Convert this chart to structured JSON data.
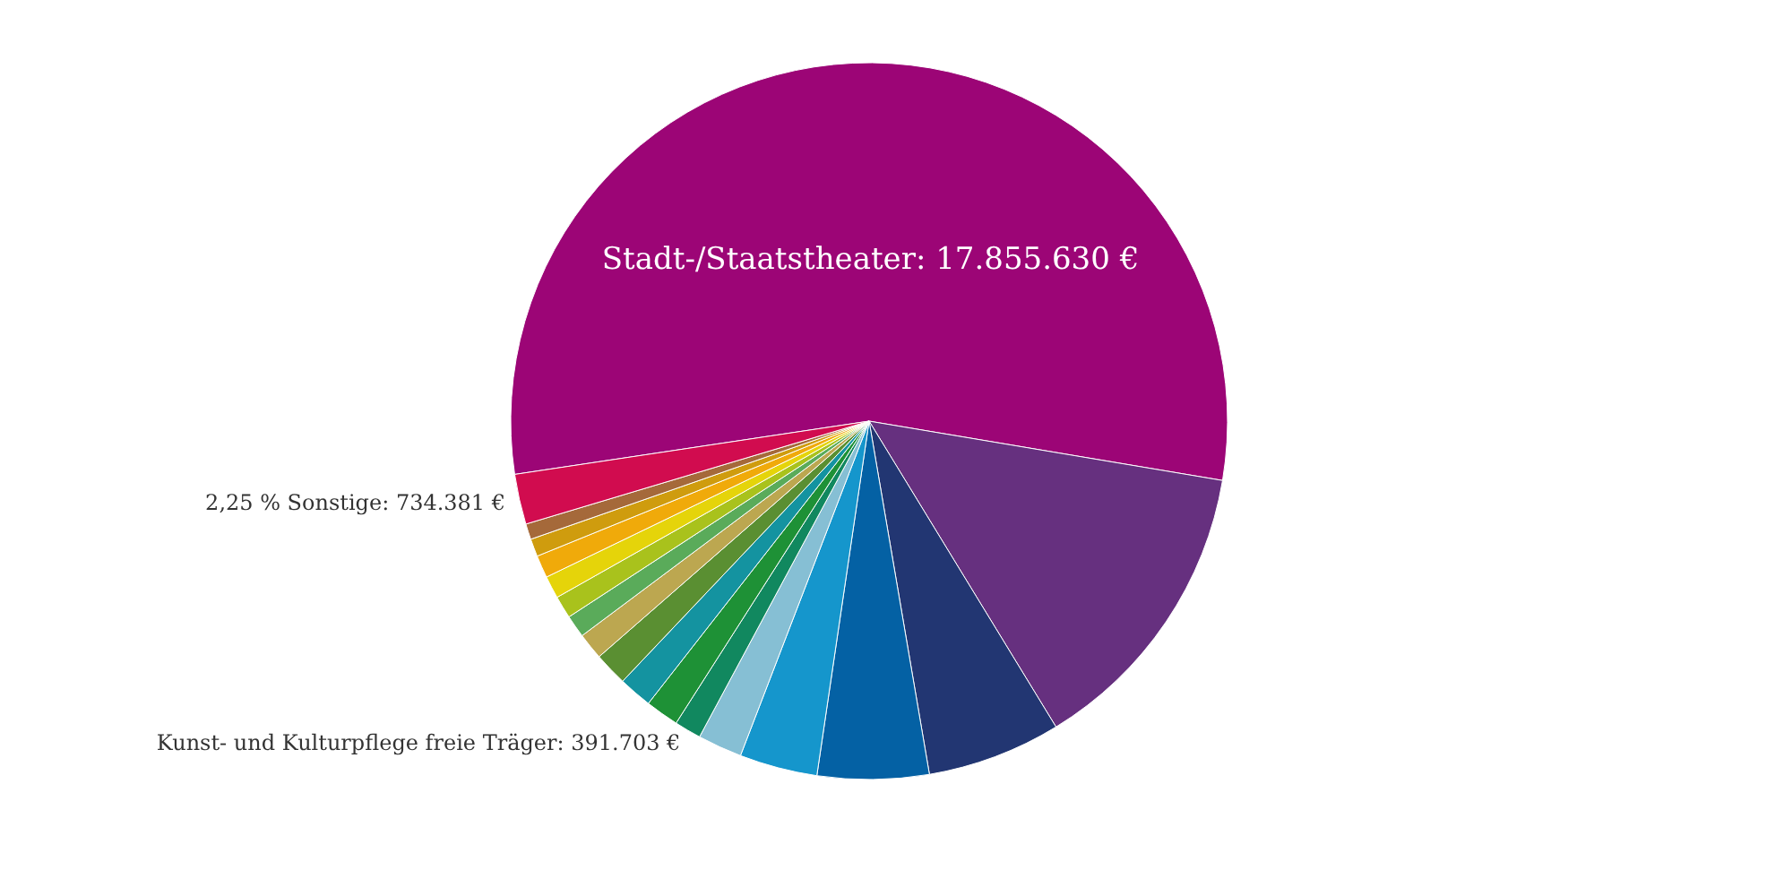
{
  "chart_data": {
    "type": "pie",
    "categories": [
      null,
      null,
      null,
      null,
      null,
      null,
      null,
      null,
      null,
      null,
      null,
      null,
      null,
      null,
      null,
      null,
      null,
      null
    ],
    "values": [
      17855630,
      4420000,
      1960000,
      1630000,
      1140000,
      650000,
      391703,
      490000,
      490000,
      490000,
      390000,
      330000,
      330000,
      330000,
      330000,
      260000,
      230000,
      734381
    ],
    "colors": [
      "#9c0576",
      "#66307f",
      "#223672",
      "#0461a4",
      "#1596cc",
      "#86bfd4",
      "#11885f",
      "#1e9136",
      "#1493a0",
      "#5a8f32",
      "#bca750",
      "#5aab5a",
      "#a9c21c",
      "#e5d40a",
      "#f0aa0a",
      "#cf9c0e",
      "#a5693a",
      "#d10c4f"
    ],
    "value_labels": [
      "Stadt-/Staatstheater: 17.855.630 €",
      null,
      null,
      null,
      null,
      null,
      "Kunst- und Kulturpflege freie Träger: 391.703 €",
      null,
      null,
      null,
      null,
      null,
      null,
      null,
      null,
      null,
      null,
      "2,25 % Sonstige: 734.381 €"
    ]
  }
}
